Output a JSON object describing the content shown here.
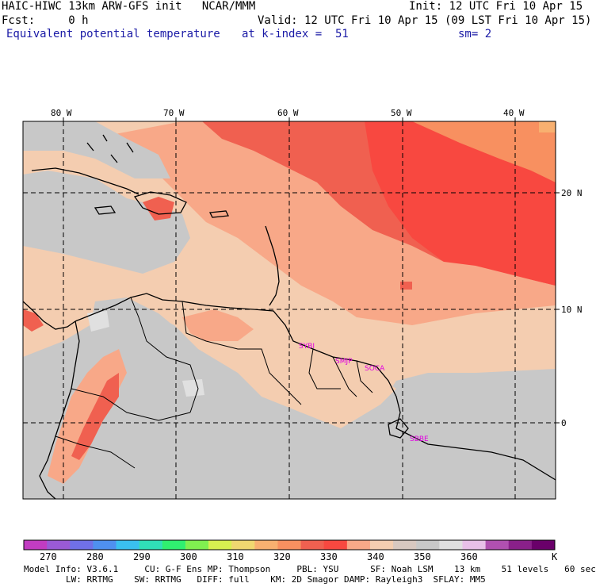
{
  "header": {
    "line1_left": "HAIC-HIWC 13km ARW-GFS init   NCAR/MMM",
    "line1_right": "Init: 12 UTC Fri 10 Apr 15",
    "line2_left": "Fcst:     0 h",
    "line2_right": "Valid: 12 UTC Fri 10 Apr 15 (09 LST Fri 10 Apr 15)",
    "field_name": "Equivalent potential temperature",
    "level": "at k-index =  51",
    "smooth": "sm= 2"
  },
  "axes": {
    "lon_labels": [
      "80 W",
      "70 W",
      "60 W",
      "50 W",
      "40 W"
    ],
    "lat_labels": [
      "20 N",
      "10 N",
      "0"
    ]
  },
  "sites": [
    "SYBI",
    "SMJP",
    "SOCA",
    "SBBE"
  ],
  "colorbar": {
    "labels": [
      "270",
      "280",
      "290",
      "300",
      "310",
      "320",
      "330",
      "340",
      "350",
      "360"
    ],
    "unit": "K",
    "colors": [
      "#c23cc2",
      "#9a5ad6",
      "#7070e8",
      "#4f90f0",
      "#3ac0f0",
      "#30e0b8",
      "#30f070",
      "#80f050",
      "#d8f050",
      "#f0d870",
      "#f8b070",
      "#f89060",
      "#f06050",
      "#f84840",
      "#f8a888",
      "#f4cdb0",
      "#d8c8c0",
      "#c8c8c8",
      "#e0e0e0",
      "#e8c0e8",
      "#b050b0",
      "#8a208a",
      "#6a006a"
    ]
  },
  "footer": {
    "line1": "Model Info: V3.6.1     CU: G-F Ens MP: Thompson     PBL: YSU      SF: Noah LSM    13 km    51 levels   60 sec",
    "line2": "        LW: RRTMG    SW: RRTMG   DIFF: full    KM: 2D Smagor DAMP: Rayleigh3  SFLAY: MM5"
  },
  "palette": {
    "grey_low": "#c8c8c8",
    "tan": "#f4cdb0",
    "salmon": "#f8a888",
    "orange_red": "#f06050",
    "red": "#f84840",
    "light_grey": "#e0e0e0",
    "peach_orange": "#f89060"
  }
}
